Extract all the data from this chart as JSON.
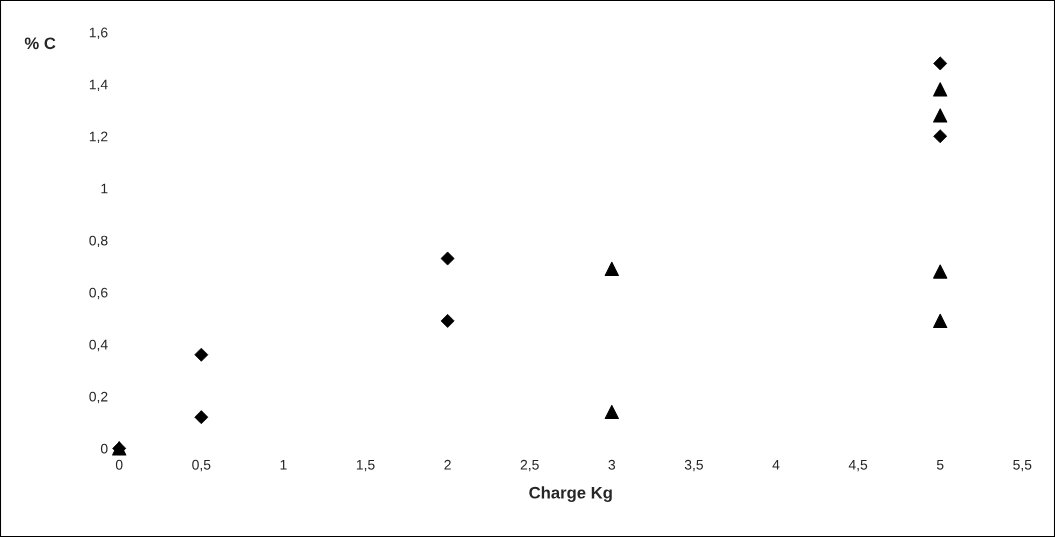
{
  "chart_data": {
    "type": "scatter",
    "xlabel": "Charge Kg",
    "ylabel": "% C",
    "series": [
      {
        "color": "#000000",
        "marker": "diamond",
        "x": [
          0,
          0.5,
          0.5,
          2,
          2,
          5,
          5
        ],
        "values": [
          0,
          0.36,
          0.12,
          0.73,
          0.49,
          1.48,
          1.2
        ]
      },
      {
        "color": "#000000",
        "marker": "triangle",
        "x": [
          0,
          3,
          3,
          5,
          5,
          5,
          5
        ],
        "values": [
          0,
          0.69,
          0.14,
          1.38,
          1.28,
          0.68,
          0.49
        ]
      }
    ],
    "xlim": [
      0,
      5.5
    ],
    "ylim": [
      0,
      1.6
    ],
    "xticks": [
      0,
      {
        "value": 0.5,
        "label": "0,5"
      },
      1,
      {
        "value": 1.5,
        "label": "1,5"
      },
      2,
      {
        "value": 2.5,
        "label": "2,5"
      },
      3,
      {
        "value": 3.5,
        "label": "3,5"
      },
      4,
      {
        "value": 4.5,
        "label": "4,5"
      },
      5,
      {
        "value": 5.5,
        "label": "5,5"
      }
    ],
    "yticks": [
      0,
      {
        "value": 0.2,
        "label": "0,2"
      },
      {
        "value": 0.4,
        "label": "0,4"
      },
      {
        "value": 0.6,
        "label": "0,6"
      },
      {
        "value": 0.8,
        "label": "0,8"
      },
      1,
      {
        "value": 1.2,
        "label": "1,2"
      },
      {
        "value": 1.4,
        "label": "1,4"
      },
      {
        "value": 1.6,
        "label": "1,6"
      }
    ],
    "grid": false,
    "legend": false
  }
}
